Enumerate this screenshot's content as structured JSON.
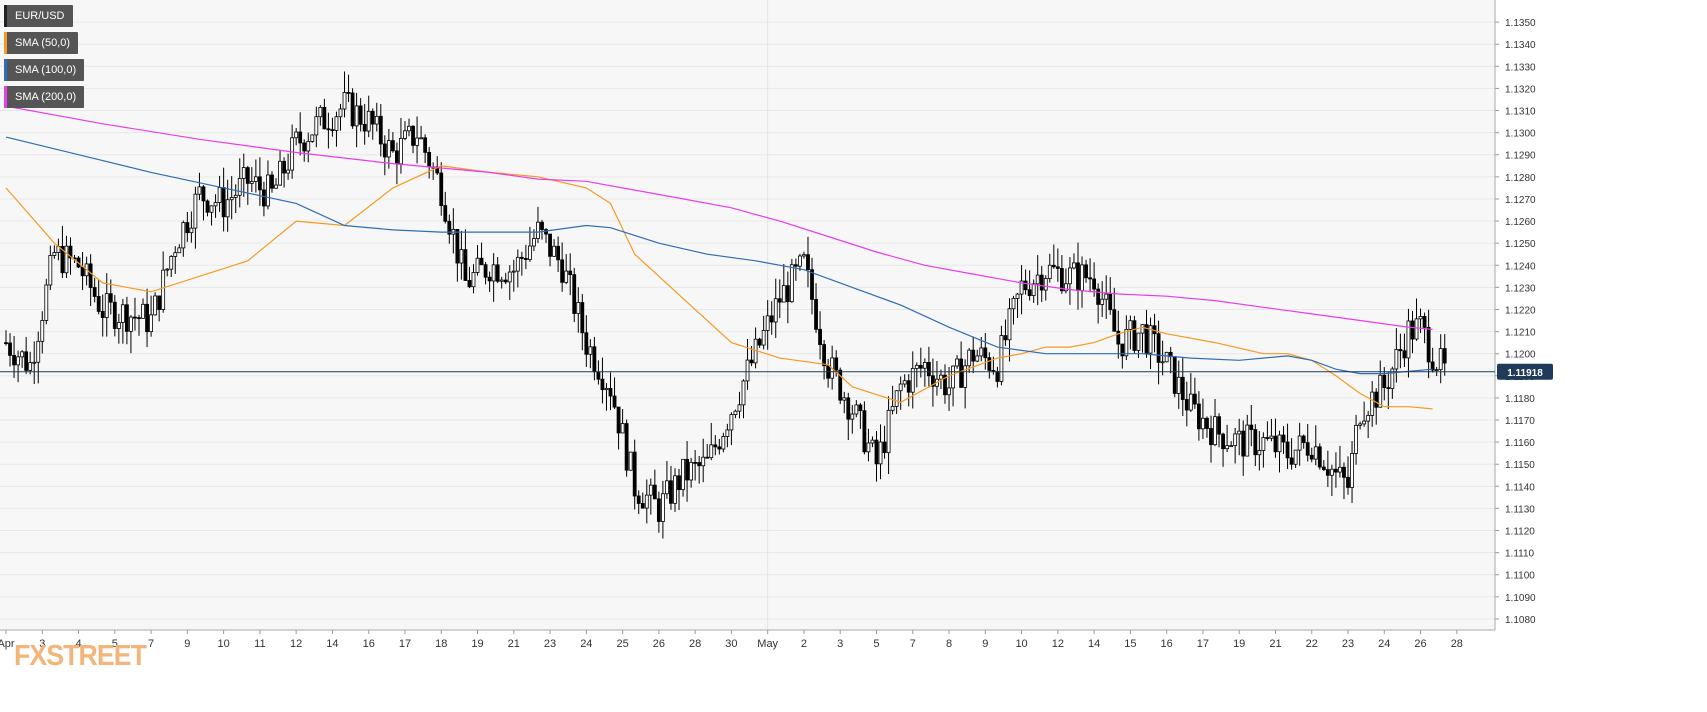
{
  "app": {
    "logo": "FXSTREET"
  },
  "legend": [
    {
      "label": "EUR/USD",
      "color": "#222222"
    },
    {
      "label": "SMA (50,0)",
      "color": "#f59a23"
    },
    {
      "label": "SMA (100,0)",
      "color": "#2f6db5"
    },
    {
      "label": "SMA (200,0)",
      "color": "#e83de8"
    }
  ],
  "last_price_label": "1.11918",
  "colors": {
    "sma50": "#f59a23",
    "sma100": "#2f6db5",
    "sma200": "#e83de8",
    "price_line": "#1f3a5a",
    "last_price_bg": "#1f3a5a",
    "up_body": "#ffffff",
    "down_body": "#000000",
    "grid": "#e8e8e8"
  },
  "chart_data": {
    "type": "candlestick",
    "symbol": "EUR/USD",
    "ylim": [
      1.1075,
      1.136
    ],
    "y_ticks": [
      "1.1080",
      "1.1090",
      "1.1100",
      "1.1110",
      "1.1120",
      "1.1130",
      "1.1140",
      "1.1150",
      "1.1160",
      "1.1170",
      "1.1180",
      "1.1190",
      "1.1200",
      "1.1210",
      "1.1220",
      "1.1230",
      "1.1240",
      "1.1250",
      "1.1260",
      "1.1270",
      "1.1280",
      "1.1290",
      "1.1300",
      "1.1310",
      "1.1320",
      "1.1330",
      "1.1340",
      "1.1350"
    ],
    "x_ticks": [
      "Apr",
      "3",
      "4",
      "5",
      "7",
      "9",
      "10",
      "11",
      "12",
      "14",
      "16",
      "17",
      "18",
      "19",
      "21",
      "23",
      "24",
      "25",
      "26",
      "28",
      "30",
      "May",
      "2",
      "3",
      "5",
      "7",
      "8",
      "9",
      "10",
      "12",
      "14",
      "15",
      "16",
      "17",
      "19",
      "21",
      "22",
      "23",
      "24",
      "26",
      "28"
    ],
    "x_tick_positions": [
      0,
      3,
      6,
      9,
      12,
      15,
      18,
      21,
      24,
      27,
      30,
      33,
      36,
      39,
      42,
      45,
      48,
      51,
      54,
      57,
      60,
      63,
      66,
      69,
      72,
      75,
      78,
      81,
      84,
      87,
      90,
      93,
      96,
      99,
      102,
      105,
      108,
      111,
      114,
      117,
      120
    ],
    "x_range": [
      0,
      122
    ],
    "grid": true,
    "last_price": 1.11918,
    "ohlc_anchors": [
      {
        "t": 0,
        "c": 1.1205
      },
      {
        "t": 2,
        "c": 1.1195
      },
      {
        "t": 4,
        "c": 1.1245
      },
      {
        "t": 6,
        "c": 1.124
      },
      {
        "t": 8,
        "c": 1.122
      },
      {
        "t": 10,
        "c": 1.1218
      },
      {
        "t": 12,
        "c": 1.1215
      },
      {
        "t": 14,
        "c": 1.125
      },
      {
        "t": 16,
        "c": 1.1272
      },
      {
        "t": 18,
        "c": 1.1268
      },
      {
        "t": 20,
        "c": 1.1278
      },
      {
        "t": 22,
        "c": 1.1272
      },
      {
        "t": 24,
        "c": 1.1295
      },
      {
        "t": 26,
        "c": 1.1305
      },
      {
        "t": 28,
        "c": 1.1312
      },
      {
        "t": 30,
        "c": 1.1305
      },
      {
        "t": 32,
        "c": 1.129
      },
      {
        "t": 34,
        "c": 1.13
      },
      {
        "t": 36,
        "c": 1.1275
      },
      {
        "t": 38,
        "c": 1.1232
      },
      {
        "t": 40,
        "c": 1.124
      },
      {
        "t": 42,
        "c": 1.1238
      },
      {
        "t": 44,
        "c": 1.1255
      },
      {
        "t": 46,
        "c": 1.124
      },
      {
        "t": 48,
        "c": 1.1205
      },
      {
        "t": 50,
        "c": 1.1185
      },
      {
        "t": 52,
        "c": 1.114
      },
      {
        "t": 54,
        "c": 1.113
      },
      {
        "t": 56,
        "c": 1.1145
      },
      {
        "t": 58,
        "c": 1.115
      },
      {
        "t": 60,
        "c": 1.1175
      },
      {
        "t": 62,
        "c": 1.12
      },
      {
        "t": 64,
        "c": 1.1225
      },
      {
        "t": 66,
        "c": 1.124
      },
      {
        "t": 68,
        "c": 1.1195
      },
      {
        "t": 70,
        "c": 1.1175
      },
      {
        "t": 72,
        "c": 1.115
      },
      {
        "t": 74,
        "c": 1.1185
      },
      {
        "t": 76,
        "c": 1.1195
      },
      {
        "t": 78,
        "c": 1.1185
      },
      {
        "t": 80,
        "c": 1.12
      },
      {
        "t": 82,
        "c": 1.1195
      },
      {
        "t": 84,
        "c": 1.123
      },
      {
        "t": 86,
        "c": 1.1238
      },
      {
        "t": 88,
        "c": 1.1235
      },
      {
        "t": 90,
        "c": 1.1235
      },
      {
        "t": 92,
        "c": 1.1205
      },
      {
        "t": 94,
        "c": 1.121
      },
      {
        "t": 96,
        "c": 1.1195
      },
      {
        "t": 98,
        "c": 1.1175
      },
      {
        "t": 100,
        "c": 1.1165
      },
      {
        "t": 102,
        "c": 1.116
      },
      {
        "t": 104,
        "c": 1.116
      },
      {
        "t": 106,
        "c": 1.1155
      },
      {
        "t": 108,
        "c": 1.116
      },
      {
        "t": 110,
        "c": 1.1145
      },
      {
        "t": 111,
        "c": 1.114
      },
      {
        "t": 112,
        "c": 1.1175
      },
      {
        "t": 114,
        "c": 1.1185
      },
      {
        "t": 116,
        "c": 1.121
      },
      {
        "t": 117,
        "c": 1.1212
      },
      {
        "t": 118,
        "c": 1.12
      },
      {
        "t": 119,
        "c": 1.11918
      }
    ],
    "series": [
      {
        "name": "SMA (50,0)",
        "points": [
          [
            0,
            1.1275
          ],
          [
            4,
            1.125
          ],
          [
            8,
            1.1232
          ],
          [
            12,
            1.1228
          ],
          [
            16,
            1.1235
          ],
          [
            20,
            1.1242
          ],
          [
            24,
            1.126
          ],
          [
            28,
            1.1258
          ],
          [
            32,
            1.1275
          ],
          [
            36,
            1.1285
          ],
          [
            40,
            1.1282
          ],
          [
            44,
            1.128
          ],
          [
            48,
            1.1275
          ],
          [
            50,
            1.1268
          ],
          [
            52,
            1.1245
          ],
          [
            56,
            1.1225
          ],
          [
            60,
            1.1205
          ],
          [
            64,
            1.1198
          ],
          [
            68,
            1.1195
          ],
          [
            70,
            1.1185
          ],
          [
            74,
            1.1178
          ],
          [
            78,
            1.119
          ],
          [
            82,
            1.1198
          ],
          [
            84,
            1.12
          ],
          [
            86,
            1.1203
          ],
          [
            88,
            1.1203
          ],
          [
            90,
            1.1205
          ],
          [
            92,
            1.1209
          ],
          [
            94,
            1.1212
          ],
          [
            96,
            1.1209
          ],
          [
            100,
            1.1205
          ],
          [
            104,
            1.12
          ],
          [
            106,
            1.12
          ],
          [
            108,
            1.1197
          ],
          [
            110,
            1.119
          ],
          [
            112,
            1.1182
          ],
          [
            114,
            1.1176
          ],
          [
            116,
            1.1176
          ],
          [
            118,
            1.1175
          ]
        ]
      },
      {
        "name": "SMA (100,0)",
        "points": [
          [
            0,
            1.1298
          ],
          [
            6,
            1.129
          ],
          [
            12,
            1.1282
          ],
          [
            18,
            1.1275
          ],
          [
            24,
            1.1268
          ],
          [
            28,
            1.1258
          ],
          [
            32,
            1.1256
          ],
          [
            36,
            1.1255
          ],
          [
            40,
            1.1255
          ],
          [
            44,
            1.1255
          ],
          [
            48,
            1.1258
          ],
          [
            50,
            1.1257
          ],
          [
            54,
            1.125
          ],
          [
            58,
            1.1245
          ],
          [
            62,
            1.1242
          ],
          [
            66,
            1.1238
          ],
          [
            70,
            1.123
          ],
          [
            74,
            1.1222
          ],
          [
            78,
            1.1212
          ],
          [
            82,
            1.1203
          ],
          [
            86,
            1.12
          ],
          [
            90,
            1.12
          ],
          [
            94,
            1.12
          ],
          [
            98,
            1.1198
          ],
          [
            102,
            1.1197
          ],
          [
            106,
            1.1199
          ],
          [
            108,
            1.1197
          ],
          [
            110,
            1.1193
          ],
          [
            112,
            1.1191
          ],
          [
            114,
            1.1191
          ],
          [
            116,
            1.1192
          ],
          [
            118,
            1.1193
          ]
        ]
      },
      {
        "name": "SMA (200,0)",
        "points": [
          [
            0,
            1.1312
          ],
          [
            8,
            1.1304
          ],
          [
            16,
            1.1297
          ],
          [
            24,
            1.1291
          ],
          [
            32,
            1.1286
          ],
          [
            40,
            1.1282
          ],
          [
            44,
            1.1279
          ],
          [
            48,
            1.1278
          ],
          [
            52,
            1.1274
          ],
          [
            56,
            1.127
          ],
          [
            60,
            1.1266
          ],
          [
            64,
            1.126
          ],
          [
            68,
            1.1253
          ],
          [
            72,
            1.1246
          ],
          [
            76,
            1.124
          ],
          [
            80,
            1.1236
          ],
          [
            84,
            1.1232
          ],
          [
            88,
            1.1229
          ],
          [
            92,
            1.1227
          ],
          [
            96,
            1.1226
          ],
          [
            100,
            1.1224
          ],
          [
            104,
            1.1221
          ],
          [
            108,
            1.1218
          ],
          [
            112,
            1.1215
          ],
          [
            116,
            1.1212
          ],
          [
            118,
            1.1211
          ]
        ]
      }
    ]
  }
}
